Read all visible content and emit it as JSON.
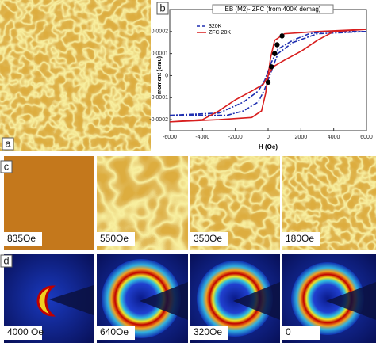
{
  "panels": {
    "a": "a",
    "b": "b",
    "c": "c",
    "d": "d"
  },
  "chart_data": {
    "type": "line",
    "title": "EB (M2)- ZFC (from 400K demag)",
    "x_label": "H (Oe)",
    "y_label": "moment (emu)",
    "xlim": [
      -6000,
      6000
    ],
    "ylim": [
      -0.00025,
      0.0003
    ],
    "xticks": [
      -6000,
      -4000,
      -2000,
      0,
      2000,
      4000,
      6000
    ],
    "yticks": [
      -0.0002,
      -0.0001,
      0,
      0.0001,
      0.0002
    ],
    "legend": "top-left",
    "series": [
      {
        "name": "320K",
        "color": "#1f2fb0",
        "dash": true,
        "x": [
          -6000,
          -3000,
          -1500,
          -600,
          -200,
          200,
          600,
          1500,
          2500,
          3500,
          6000,
          3000,
          1500,
          600,
          200,
          -200,
          -600,
          -1500,
          -2500,
          -3500,
          -6000
        ],
        "values": [
          -0.00018,
          -0.00017,
          -0.00012,
          -7e-05,
          -2e-05,
          6e-05,
          0.00012,
          0.00016,
          0.00019,
          0.0002,
          0.0002,
          0.00019,
          0.00015,
          0.0001,
          2e-05,
          -6e-05,
          -0.00012,
          -0.00016,
          -0.00018,
          -0.00018,
          -0.00018
        ]
      },
      {
        "name": "ZFC 20K",
        "color": "#d81e1e",
        "dash": false,
        "x": [
          -6000,
          -4000,
          -3000,
          -2000,
          -1000,
          -300,
          0,
          150,
          400,
          1000,
          3000,
          6000,
          4000,
          3000,
          2000,
          1000,
          300,
          0,
          -150,
          -400,
          -1000,
          -3000,
          -6000
        ],
        "values": [
          -0.00021,
          -0.0002,
          -0.00016,
          -0.00011,
          -7e-05,
          -4e-05,
          0,
          8e-05,
          0.00016,
          0.00019,
          0.0002,
          0.00021,
          0.0002,
          0.00016,
          0.00011,
          7e-05,
          4e-05,
          0,
          -8e-05,
          -0.00016,
          -0.00019,
          -0.0002,
          -0.00021
        ]
      }
    ],
    "points": {
      "color": "#000000",
      "x": [
        0,
        200,
        400,
        550,
        850
      ],
      "values": [
        -3e-05,
        4e-05,
        0.0001,
        0.00014,
        0.00018
      ]
    }
  },
  "panel_c": {
    "labels": [
      "835Oe",
      "550Oe",
      "350Oe",
      "180Oe"
    ]
  },
  "panel_d": {
    "labels": [
      "4000 Oe",
      "640Oe",
      "320Oe",
      "0"
    ]
  }
}
